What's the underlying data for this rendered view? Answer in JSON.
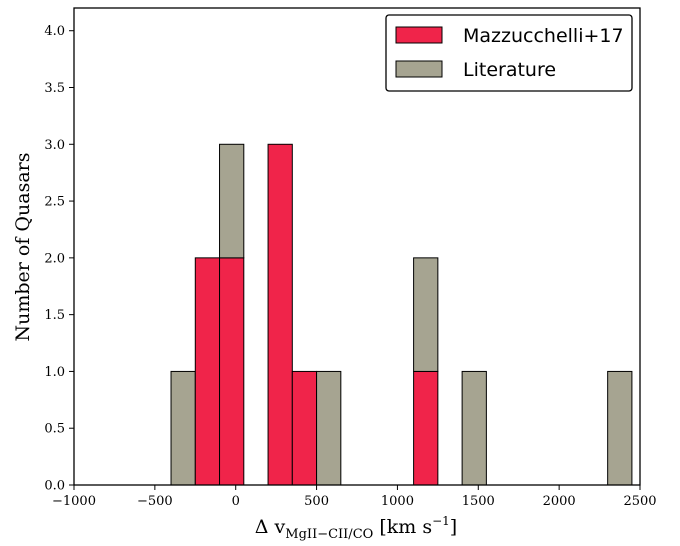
{
  "chart_data": {
    "type": "bar",
    "stacked": true,
    "bin_width": 150,
    "bin_starts": [
      -400,
      -250,
      -100,
      200,
      350,
      500,
      1100,
      1400,
      2300
    ],
    "series": [
      {
        "name": "Mazzucchelli+17",
        "color": "#f0244a",
        "values": [
          0,
          2,
          2,
          3,
          1,
          0,
          1,
          0,
          0
        ]
      },
      {
        "name": "Literature",
        "color": "#a6a491",
        "values": [
          1,
          0,
          1,
          0,
          0,
          1,
          1,
          1,
          1
        ]
      }
    ],
    "xlim": [
      -1000,
      2500
    ],
    "ylim": [
      0,
      4.2
    ],
    "x_ticks": [
      "−1000",
      "−500",
      "0",
      "500",
      "1000",
      "1500",
      "2000",
      "2500"
    ],
    "x_tick_values": [
      -1000,
      -500,
      0,
      500,
      1000,
      1500,
      2000,
      2500
    ],
    "y_ticks": [
      "0.0",
      "0.5",
      "1.0",
      "1.5",
      "2.0",
      "2.5",
      "3.0",
      "3.5",
      "4.0"
    ],
    "y_tick_values": [
      0,
      0.5,
      1,
      1.5,
      2,
      2.5,
      3,
      3.5,
      4
    ],
    "xlabel": {
      "prefix": "Δ v",
      "subscript": "MgII−CII/CO",
      "unit_open": " [km s",
      "unit_exp": "−1",
      "unit_close": "]"
    },
    "ylabel": "Number of Quasars",
    "legend_position": "top-right",
    "grid": false
  }
}
